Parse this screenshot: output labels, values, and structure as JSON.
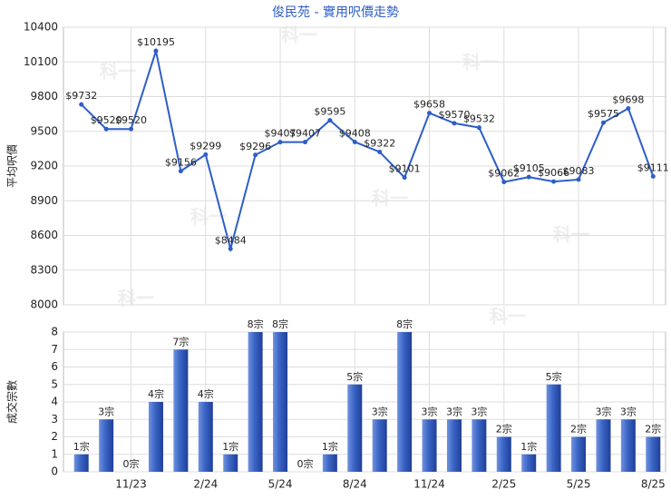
{
  "chart_data": [
    {
      "type": "line",
      "title": "俊民苑 - 實用呎價走勢",
      "ylabel": "平均呎價",
      "watermark": "科一",
      "categories": [
        null,
        null,
        "11/23",
        null,
        null,
        "2/24",
        null,
        null,
        "5/24",
        null,
        null,
        "8/24",
        null,
        null,
        "11/24",
        null,
        null,
        "2/25",
        null,
        null,
        "5/25",
        null,
        null,
        "8/25"
      ],
      "values": [
        9732,
        9520,
        9520,
        10195,
        9156,
        9299,
        8484,
        9296,
        9407,
        9407,
        9595,
        9408,
        9322,
        9101,
        9658,
        9570,
        9532,
        9062,
        9105,
        9066,
        9083,
        9575,
        9698,
        9111
      ],
      "value_labels": [
        "$9732",
        "$9520",
        "$9520",
        "$10195",
        "$9156",
        "$9299",
        "$8484",
        "$9296",
        "$9407",
        "$9407",
        "$9595",
        "$9408",
        "$9322",
        "$9101",
        "$9658",
        "$9570",
        "$9532",
        "$9062",
        "$9105",
        "$9066",
        "$9083",
        "$9575",
        "$9698",
        "$9111"
      ],
      "color": "#2d5ec8",
      "ylim": [
        8000,
        10400
      ],
      "yticks": [
        8000,
        8300,
        8600,
        8900,
        9200,
        9500,
        9800,
        10100,
        10400
      ],
      "grid": true
    },
    {
      "type": "bar",
      "ylabel": "成交宗數",
      "categories": [
        null,
        null,
        "11/23",
        null,
        null,
        "2/24",
        null,
        null,
        "5/24",
        null,
        null,
        "8/24",
        null,
        null,
        "11/24",
        null,
        null,
        "2/25",
        null,
        null,
        "5/25",
        null,
        null,
        "8/25"
      ],
      "values": [
        1,
        3,
        0,
        4,
        7,
        4,
        1,
        8,
        8,
        0,
        1,
        5,
        3,
        8,
        3,
        3,
        3,
        2,
        1,
        5,
        2,
        3,
        3,
        2
      ],
      "value_labels": [
        "1宗",
        "3宗",
        "0宗",
        "4宗",
        "7宗",
        "4宗",
        "1宗",
        "8宗",
        "8宗",
        "0宗",
        "1宗",
        "5宗",
        "3宗",
        "8宗",
        "3宗",
        "3宗",
        "3宗",
        "2宗",
        "1宗",
        "5宗",
        "2宗",
        "3宗",
        "3宗",
        "2宗"
      ],
      "color": "#3a64c4",
      "ylim": [
        0,
        8
      ],
      "yticks": [
        0,
        1,
        2,
        3,
        4,
        5,
        6,
        7,
        8
      ],
      "grid": true
    }
  ]
}
